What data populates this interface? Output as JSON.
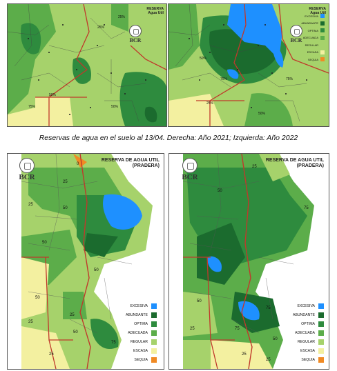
{
  "caption": "Reservas de agua en el suelo al 13/04. Derecha: Año 2021; Izquierda: Año 2022",
  "top_left": {
    "title_line1": "RESERVA",
    "title_line2": "Agua Util",
    "logo_text": "BCR",
    "contours": [
      "25%",
      "50%",
      "50%",
      "25%",
      "75%"
    ]
  },
  "top_right": {
    "title_line1": "RESERVA",
    "title_line2": "Agua Util",
    "logo_text": "BCR",
    "contours": [
      "75%",
      "75%",
      "50%",
      "25%",
      "50%"
    ]
  },
  "bottom_left": {
    "title_line1": "RESERVA DE AGUA UTIL",
    "title_line2": "(PRADERA)",
    "logo_text": "BCR",
    "contours": [
      "0",
      "25",
      "25",
      "50",
      "50",
      "50",
      "50",
      "25",
      "25",
      "50",
      "25",
      "75"
    ]
  },
  "bottom_right": {
    "title_line1": "RESERVA DE AGUA UTIL",
    "title_line2": "(PRADERA)",
    "logo_text": "BCR",
    "contours": [
      "75",
      "50",
      "25",
      "50",
      "25",
      "75",
      "75",
      "50",
      "25",
      "25"
    ]
  },
  "legend": [
    {
      "label": "EXCESIVA",
      "color": "#1e90ff"
    },
    {
      "label": "ABUNDANTE",
      "color": "#1b6b2e"
    },
    {
      "label": "OPTIMA",
      "color": "#2e8b3e"
    },
    {
      "label": "ADECUADA",
      "color": "#5cad4a"
    },
    {
      "label": "REGULAR",
      "color": "#a6d26b"
    },
    {
      "label": "ESCASA",
      "color": "#f3f0a0"
    },
    {
      "label": "SEQUIA",
      "color": "#f08a24"
    }
  ],
  "map_colors": {
    "excesiva": "#1e90ff",
    "abundante": "#1b6b2e",
    "optima": "#2e8b3e",
    "adecuada": "#5cad4a",
    "regular": "#a6d26b",
    "escasa": "#f3f0a0",
    "sequia": "#f08a24",
    "province_border": "#c0392b"
  }
}
